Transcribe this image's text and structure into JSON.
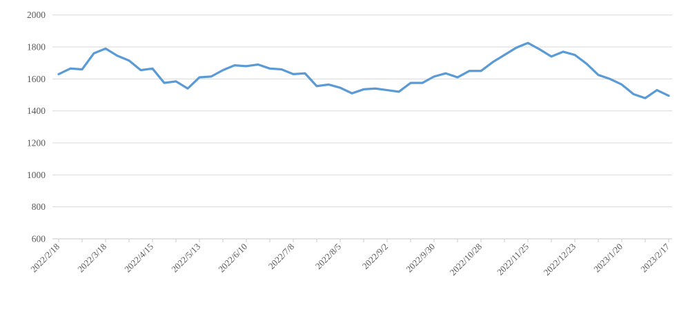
{
  "chart": {
    "background_color": "#ffffff",
    "line_color": "#5b9bd5",
    "gridline_color": "#d9d9d9",
    "axis_line_color": "#c9c9c9",
    "tick_color": "#c9c9c9",
    "label_color": "#595959"
  },
  "chart_data": {
    "type": "line",
    "title": "",
    "xlabel": "",
    "ylabel": "",
    "legend": "none",
    "grid": "horizontal",
    "ylim": [
      600,
      2000
    ],
    "y_tick_step": 200,
    "y_ticks": [
      600,
      800,
      1000,
      1200,
      1400,
      1600,
      1800,
      2000
    ],
    "x_tick_labels": [
      "2022/2/18",
      "2022/3/18",
      "2022/4/15",
      "2022/5/13",
      "2022/6/10",
      "2022/7/8",
      "2022/8/5",
      "2022/9/2",
      "2022/9/30",
      "2022/10/28",
      "2022/11/25",
      "2022/12/23",
      "2023/1/20",
      "2023/2/17"
    ],
    "x_label_every_n_points": 4,
    "x": [
      "2022/2/18",
      "2022/2/25",
      "2022/3/4",
      "2022/3/11",
      "2022/3/18",
      "2022/3/25",
      "2022/4/1",
      "2022/4/8",
      "2022/4/15",
      "2022/4/22",
      "2022/4/29",
      "2022/5/6",
      "2022/5/13",
      "2022/5/20",
      "2022/5/27",
      "2022/6/3",
      "2022/6/10",
      "2022/6/17",
      "2022/6/24",
      "2022/7/1",
      "2022/7/8",
      "2022/7/15",
      "2022/7/22",
      "2022/7/29",
      "2022/8/5",
      "2022/8/12",
      "2022/8/19",
      "2022/8/26",
      "2022/9/2",
      "2022/9/9",
      "2022/9/16",
      "2022/9/23",
      "2022/9/30",
      "2022/10/7",
      "2022/10/14",
      "2022/10/21",
      "2022/10/28",
      "2022/11/4",
      "2022/11/11",
      "2022/11/18",
      "2022/11/25",
      "2022/12/2",
      "2022/12/9",
      "2022/12/16",
      "2022/12/23",
      "2022/12/30",
      "2023/1/6",
      "2023/1/13",
      "2023/1/20",
      "2023/1/27",
      "2023/2/3",
      "2023/2/10",
      "2023/2/17"
    ],
    "series": [
      {
        "name": "",
        "values": [
          1630,
          1665,
          1660,
          1760,
          1790,
          1745,
          1715,
          1655,
          1665,
          1575,
          1585,
          1540,
          1610,
          1615,
          1655,
          1685,
          1680,
          1690,
          1665,
          1660,
          1630,
          1635,
          1555,
          1565,
          1545,
          1510,
          1535,
          1540,
          1530,
          1520,
          1575,
          1575,
          1615,
          1635,
          1610,
          1650,
          1650,
          1705,
          1750,
          1795,
          1825,
          1785,
          1740,
          1770,
          1750,
          1695,
          1625,
          1600,
          1565,
          1505,
          1480,
          1530,
          1495
        ]
      }
    ]
  }
}
